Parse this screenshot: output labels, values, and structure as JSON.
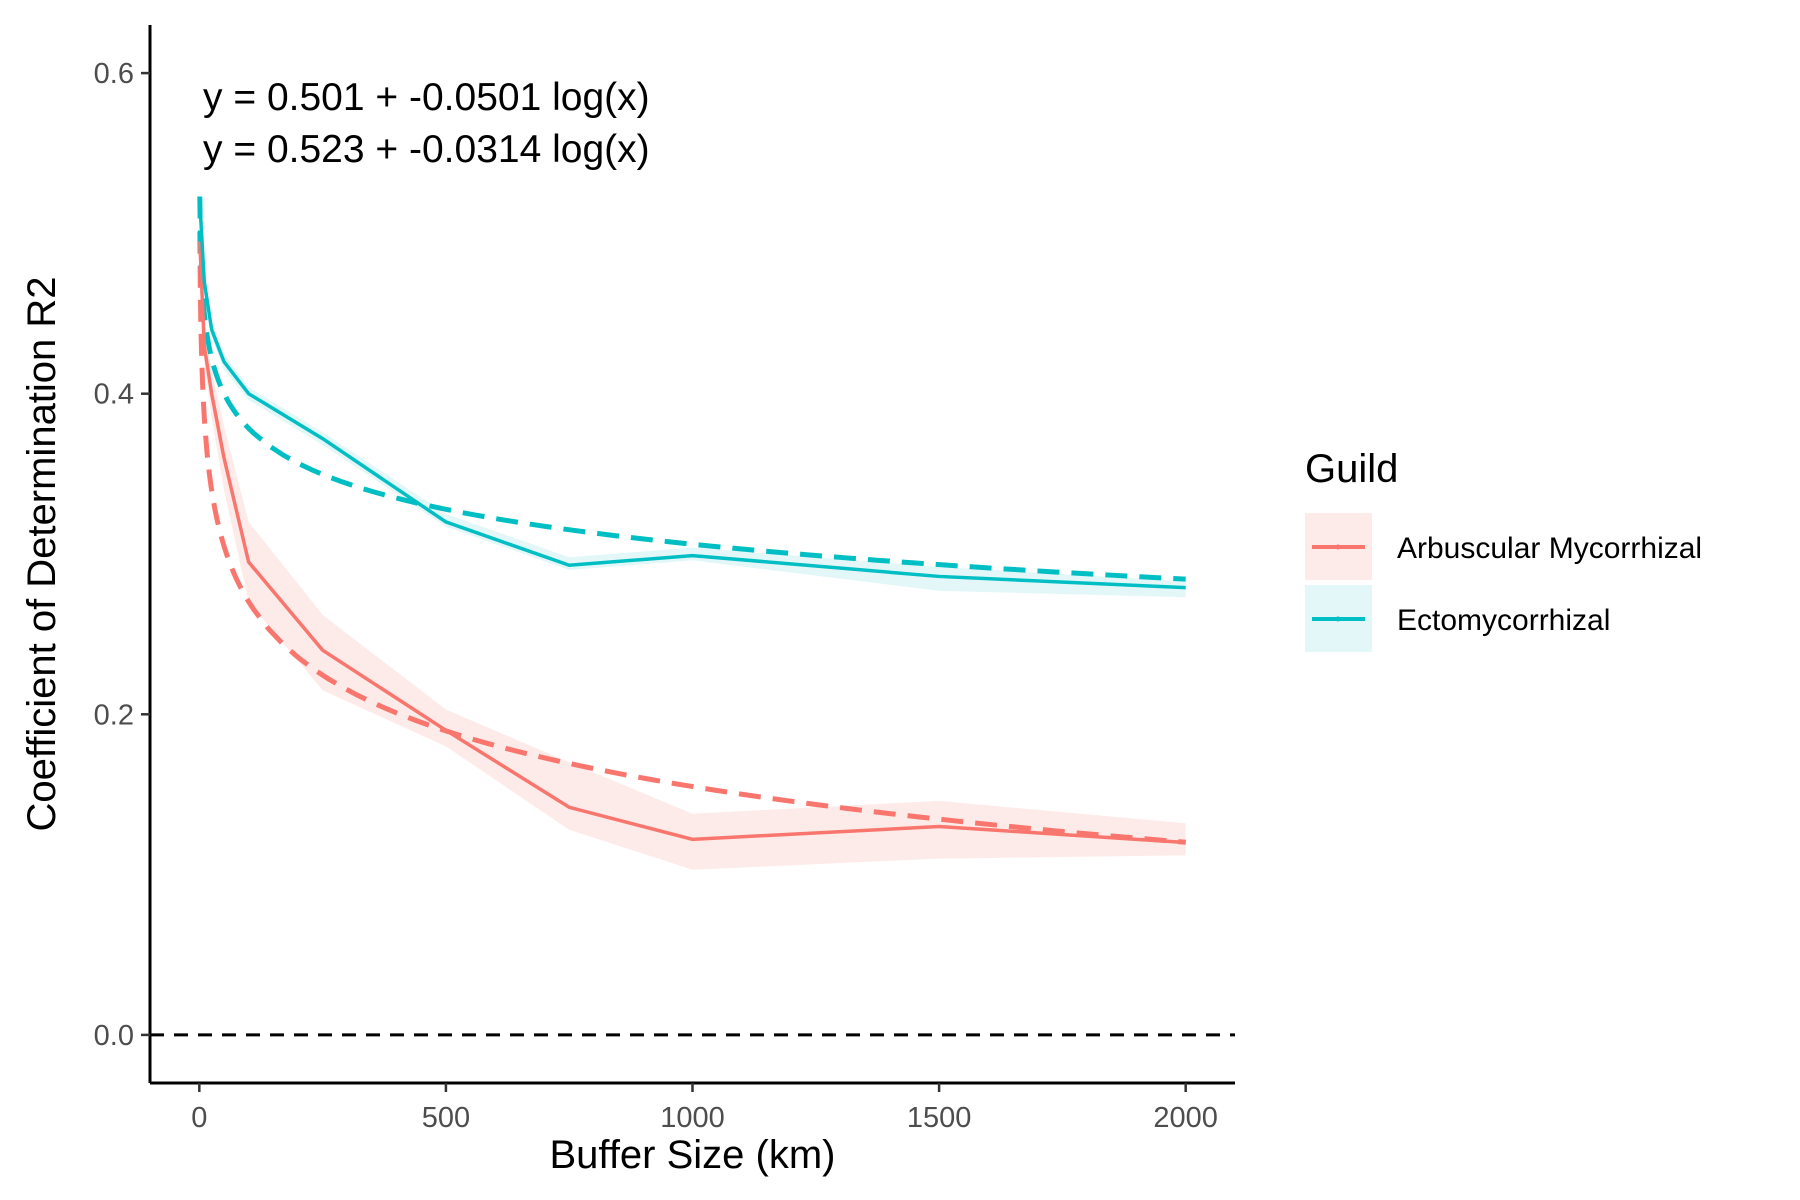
{
  "chart_data": {
    "type": "line",
    "title": "",
    "xlabel": "Buffer Size (km)",
    "ylabel": "Coefficient of Determination R2",
    "xlim": [
      -100,
      2100
    ],
    "ylim": [
      -0.03,
      0.63
    ],
    "x_ticks": [
      0,
      500,
      1000,
      1500,
      2000
    ],
    "x_tick_labels": [
      "0",
      "500",
      "1000",
      "1500",
      "2000"
    ],
    "y_ticks": [
      0.0,
      0.2,
      0.4,
      0.6
    ],
    "y_tick_labels": [
      "0.0",
      "0.2",
      "0.4",
      "0.6"
    ],
    "grid": false,
    "reference_line": {
      "y": 0.0,
      "style": "dashed",
      "color": "#000000"
    },
    "annotations": [
      "y = 0.501 + -0.0501 log(x)",
      "y = 0.523 + -0.0314 log(x)"
    ],
    "legend": {
      "title": "Guild",
      "placement": "right"
    },
    "series": [
      {
        "name": "Arbuscular Mycorrhizal",
        "color": "#F8766D",
        "fill": "#FDEBE9",
        "x": [
          1,
          10,
          25,
          50,
          100,
          250,
          500,
          750,
          1000,
          1500,
          2000
        ],
        "values": [
          0.495,
          0.43,
          0.4,
          0.36,
          0.295,
          0.24,
          0.19,
          0.142,
          0.122,
          0.13,
          0.12
        ],
        "ribbon_lower": [
          0.49,
          0.42,
          0.385,
          0.34,
          0.27,
          0.215,
          0.18,
          0.128,
          0.103,
          0.11,
          0.112
        ],
        "ribbon_upper": [
          0.5,
          0.44,
          0.415,
          0.38,
          0.32,
          0.262,
          0.203,
          0.17,
          0.138,
          0.146,
          0.132
        ],
        "fit": {
          "intercept": 0.501,
          "slope": -0.0501
        }
      },
      {
        "name": "Ectomycorrhizal",
        "color": "#00BFC4",
        "fill": "#E3F7F8",
        "x": [
          1,
          10,
          25,
          50,
          100,
          250,
          500,
          750,
          1000,
          1500,
          2000
        ],
        "values": [
          0.52,
          0.47,
          0.44,
          0.42,
          0.4,
          0.372,
          0.32,
          0.293,
          0.299,
          0.286,
          0.279
        ],
        "ribbon_lower": [
          0.515,
          0.465,
          0.435,
          0.415,
          0.396,
          0.368,
          0.317,
          0.29,
          0.296,
          0.277,
          0.273
        ],
        "ribbon_upper": [
          0.525,
          0.475,
          0.445,
          0.425,
          0.404,
          0.376,
          0.325,
          0.298,
          0.304,
          0.292,
          0.283
        ],
        "fit": {
          "intercept": 0.523,
          "slope": -0.0314
        }
      }
    ]
  }
}
